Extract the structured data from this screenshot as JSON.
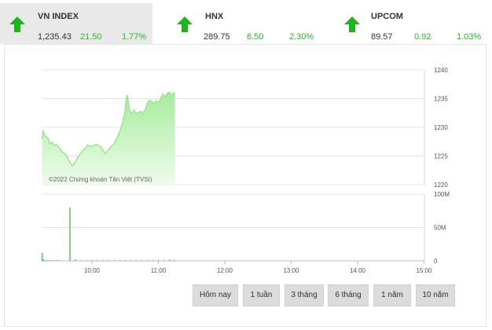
{
  "tabs": [
    {
      "name": "VN INDEX",
      "value": "1,235.43",
      "change": "21.50",
      "percent": "1.77%",
      "direction": "up",
      "active": true
    },
    {
      "name": "HNX",
      "value": "289.75",
      "change": "6.50",
      "percent": "2.30%",
      "direction": "up",
      "active": false
    },
    {
      "name": "UPCOM",
      "value": "89.57",
      "change": "0.92",
      "percent": "1.03%",
      "direction": "up",
      "active": false
    }
  ],
  "colors": {
    "up": "#1db51d",
    "line": "#9ee591",
    "area_top": "#a7ec9d",
    "area_bottom": "#effbec",
    "volume": "#49c24a",
    "active_tab_bg": "#e9e9e9"
  },
  "chart_data": {
    "type": "area",
    "watermark": "©2022 Chứng khoán Tân Việt (TVSI)",
    "price": {
      "yticks": [
        "1240",
        "1235",
        "1230",
        "1225",
        "1220"
      ],
      "ylim": [
        1220,
        1240
      ],
      "points": [
        [
          "09:15",
          1228.0
        ],
        [
          "09:16",
          1229.3
        ],
        [
          "09:18",
          1228.4
        ],
        [
          "09:20",
          1228.2
        ],
        [
          "09:22",
          1227.1
        ],
        [
          "09:24",
          1227.4
        ],
        [
          "09:26",
          1226.8
        ],
        [
          "09:28",
          1227.0
        ],
        [
          "09:30",
          1226.5
        ],
        [
          "09:33",
          1225.7
        ],
        [
          "09:36",
          1225.3
        ],
        [
          "09:38",
          1224.7
        ],
        [
          "09:40",
          1223.9
        ],
        [
          "09:42",
          1223.3
        ],
        [
          "09:44",
          1223.7
        ],
        [
          "09:46",
          1224.3
        ],
        [
          "09:48",
          1225.0
        ],
        [
          "09:50",
          1225.5
        ],
        [
          "09:52",
          1226.0
        ],
        [
          "09:54",
          1226.3
        ],
        [
          "09:56",
          1226.9
        ],
        [
          "09:58",
          1226.7
        ],
        [
          "10:00",
          1226.6
        ],
        [
          "10:02",
          1226.9
        ],
        [
          "10:04",
          1227.0
        ],
        [
          "10:06",
          1226.8
        ],
        [
          "10:08",
          1226.6
        ],
        [
          "10:10",
          1226.0
        ],
        [
          "10:12",
          1225.4
        ],
        [
          "10:14",
          1225.9
        ],
        [
          "10:16",
          1226.3
        ],
        [
          "10:18",
          1226.8
        ],
        [
          "10:20",
          1227.1
        ],
        [
          "10:22",
          1227.9
        ],
        [
          "10:24",
          1228.7
        ],
        [
          "10:26",
          1229.7
        ],
        [
          "10:28",
          1231.0
        ],
        [
          "10:30",
          1233.0
        ],
        [
          "10:31",
          1235.0
        ],
        [
          "10:32",
          1235.6
        ],
        [
          "10:33",
          1234.0
        ],
        [
          "10:34",
          1232.9
        ],
        [
          "10:36",
          1232.3
        ],
        [
          "10:38",
          1233.0
        ],
        [
          "10:40",
          1232.4
        ],
        [
          "10:42",
          1232.5
        ],
        [
          "10:44",
          1232.8
        ],
        [
          "10:46",
          1232.4
        ],
        [
          "10:48",
          1233.0
        ],
        [
          "10:50",
          1234.2
        ],
        [
          "10:52",
          1234.7
        ],
        [
          "10:54",
          1234.5
        ],
        [
          "10:56",
          1234.1
        ],
        [
          "10:58",
          1234.6
        ],
        [
          "11:00",
          1234.3
        ],
        [
          "11:02",
          1234.9
        ],
        [
          "11:04",
          1235.8
        ],
        [
          "11:06",
          1235.3
        ],
        [
          "11:08",
          1235.9
        ],
        [
          "11:10",
          1236.1
        ],
        [
          "11:12",
          1235.6
        ],
        [
          "11:14",
          1236.0
        ],
        [
          "11:15",
          1235.8
        ]
      ]
    },
    "volume": {
      "yticks": [
        "100M",
        "50M",
        "0"
      ],
      "ylim": [
        0,
        100
      ],
      "unit": "M",
      "bars": [
        [
          "09:15",
          12
        ],
        [
          "09:16",
          2
        ],
        [
          "09:17",
          1
        ],
        [
          "09:19",
          1
        ],
        [
          "09:21",
          1
        ],
        [
          "09:24",
          1
        ],
        [
          "09:28",
          1
        ],
        [
          "09:31",
          1
        ],
        [
          "09:40",
          80
        ],
        [
          "09:45",
          2
        ],
        [
          "09:50",
          1
        ],
        [
          "09:55",
          1
        ],
        [
          "10:00",
          1
        ],
        [
          "10:05",
          1
        ],
        [
          "10:10",
          1
        ],
        [
          "10:15",
          1
        ],
        [
          "10:20",
          1
        ],
        [
          "10:25",
          1
        ],
        [
          "10:30",
          1
        ],
        [
          "10:35",
          1
        ],
        [
          "10:40",
          1
        ],
        [
          "10:45",
          1
        ],
        [
          "10:50",
          1
        ],
        [
          "10:55",
          1
        ],
        [
          "11:00",
          1
        ],
        [
          "11:05",
          1
        ],
        [
          "11:10",
          2
        ],
        [
          "11:14",
          1
        ]
      ]
    },
    "xticks": [
      "10:00",
      "11:00",
      "12:00",
      "13:00",
      "14:00",
      "15:00"
    ],
    "xrange": [
      "09:00",
      "15:00"
    ]
  },
  "range_buttons": [
    "Hôm nay",
    "1 tuần",
    "3 tháng",
    "6 tháng",
    "1 năm",
    "10 năm"
  ]
}
